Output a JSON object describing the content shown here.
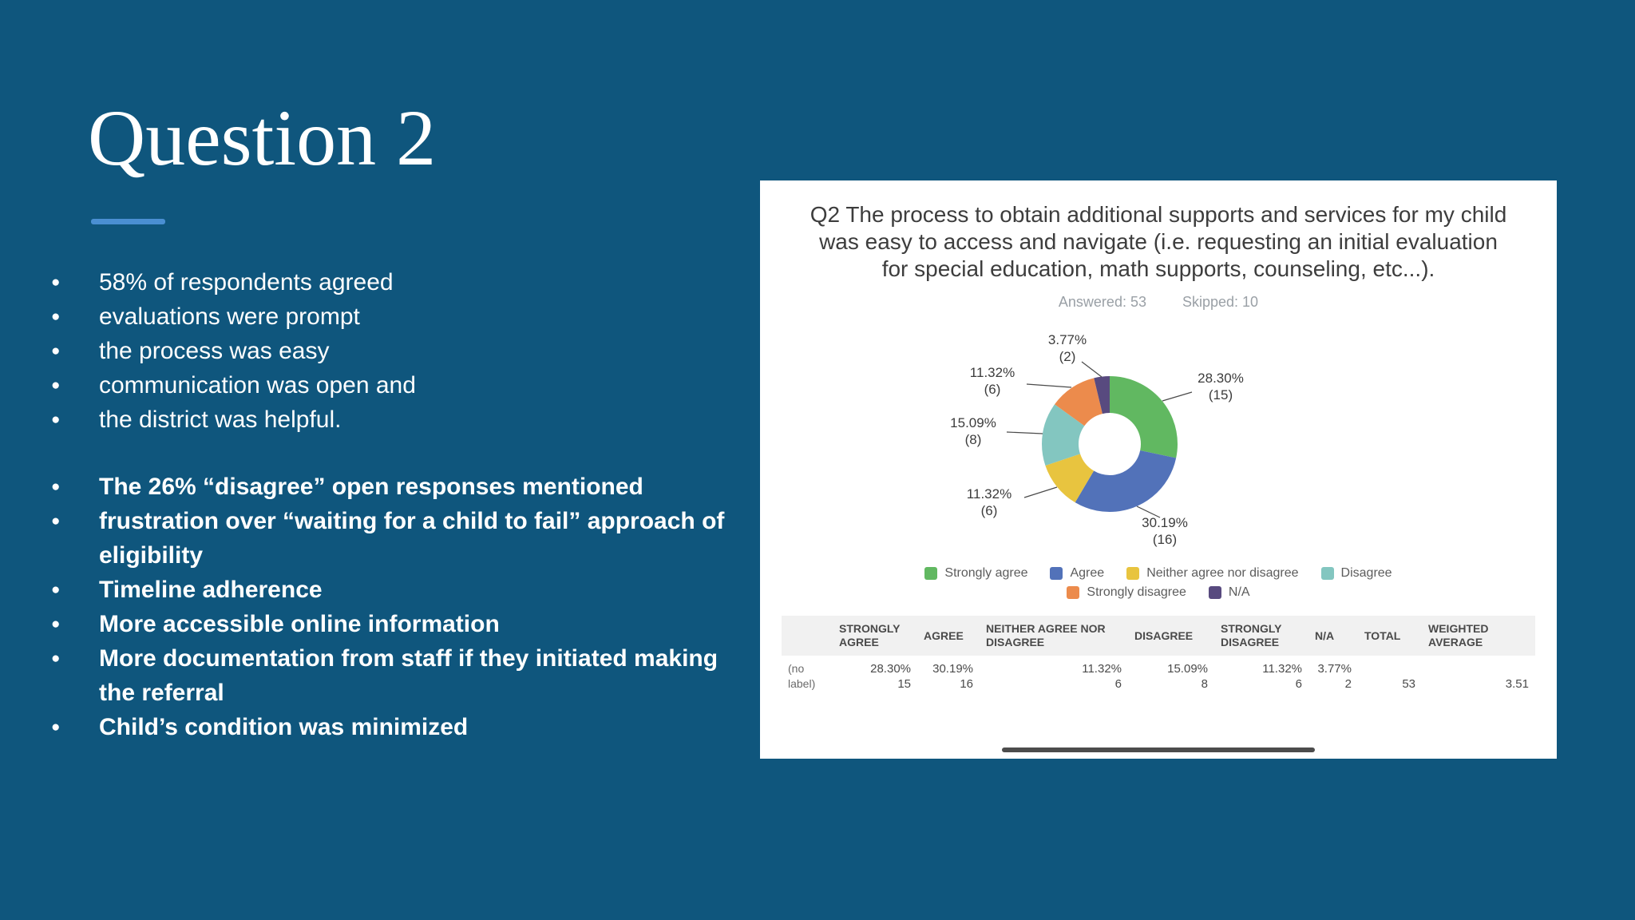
{
  "slide": {
    "title": "Question 2",
    "background_color": "#0f567d",
    "accent_color": "#4a8fd2",
    "bullets_regular": [
      "58% of respondents agreed",
      "evaluations were prompt",
      "the process was easy",
      "communication was open and",
      "the district was helpful."
    ],
    "bullets_bold": [
      "The 26% “disagree” open responses mentioned",
      " frustration over “waiting for a child to fail” approach of eligibility",
      "Timeline adherence",
      "More accessible online information",
      "More documentation from staff if they initiated making the referral",
      "Child’s condition was minimized"
    ]
  },
  "survey": {
    "question": "Q2 The process to obtain additional supports and services for my child was easy to access and navigate (i.e. requesting an initial evaluation for special education, math supports, counseling, etc...).",
    "answered": "Answered: 53",
    "skipped": "Skipped: 10",
    "table": {
      "headers": [
        "",
        "STRONGLY AGREE",
        "AGREE",
        "NEITHER AGREE NOR DISAGREE",
        "DISAGREE",
        "STRONGLY DISAGREE",
        "N/A",
        "TOTAL",
        "WEIGHTED AVERAGE"
      ],
      "row": {
        "label": "(no label)",
        "cells": [
          {
            "pct": "28.30%",
            "count": "15"
          },
          {
            "pct": "30.19%",
            "count": "16"
          },
          {
            "pct": "11.32%",
            "count": "6"
          },
          {
            "pct": "15.09%",
            "count": "8"
          },
          {
            "pct": "11.32%",
            "count": "6"
          },
          {
            "pct": "3.77%",
            "count": "2"
          },
          {
            "pct": "",
            "count": "53"
          },
          {
            "pct": "",
            "count": "3.51"
          }
        ]
      }
    }
  },
  "chart_data": {
    "type": "pie",
    "donut": true,
    "title": "Q2 The process to obtain additional supports and services for my child was easy to access and navigate (i.e. requesting an initial evaluation for special education, math supports, counseling, etc...).",
    "answered": 53,
    "skipped": 10,
    "categories": [
      "Strongly agree",
      "Agree",
      "Neither agree nor disagree",
      "Disagree",
      "Strongly disagree",
      "N/A"
    ],
    "values": [
      15,
      16,
      6,
      8,
      6,
      2
    ],
    "percentages": [
      28.3,
      30.19,
      11.32,
      15.09,
      11.32,
      3.77
    ],
    "colors": [
      "#61b861",
      "#5272b9",
      "#e8c43f",
      "#83c6c0",
      "#ec8b4c",
      "#584a7f"
    ],
    "labels": [
      {
        "pct": "28.30%",
        "count": "(15)"
      },
      {
        "pct": "30.19%",
        "count": "(16)"
      },
      {
        "pct": "11.32%",
        "count": "(6)"
      },
      {
        "pct": "15.09%",
        "count": "(8)"
      },
      {
        "pct": "11.32%",
        "count": "(6)"
      },
      {
        "pct": "3.77%",
        "count": "(2)"
      }
    ],
    "legend_position": "bottom"
  }
}
